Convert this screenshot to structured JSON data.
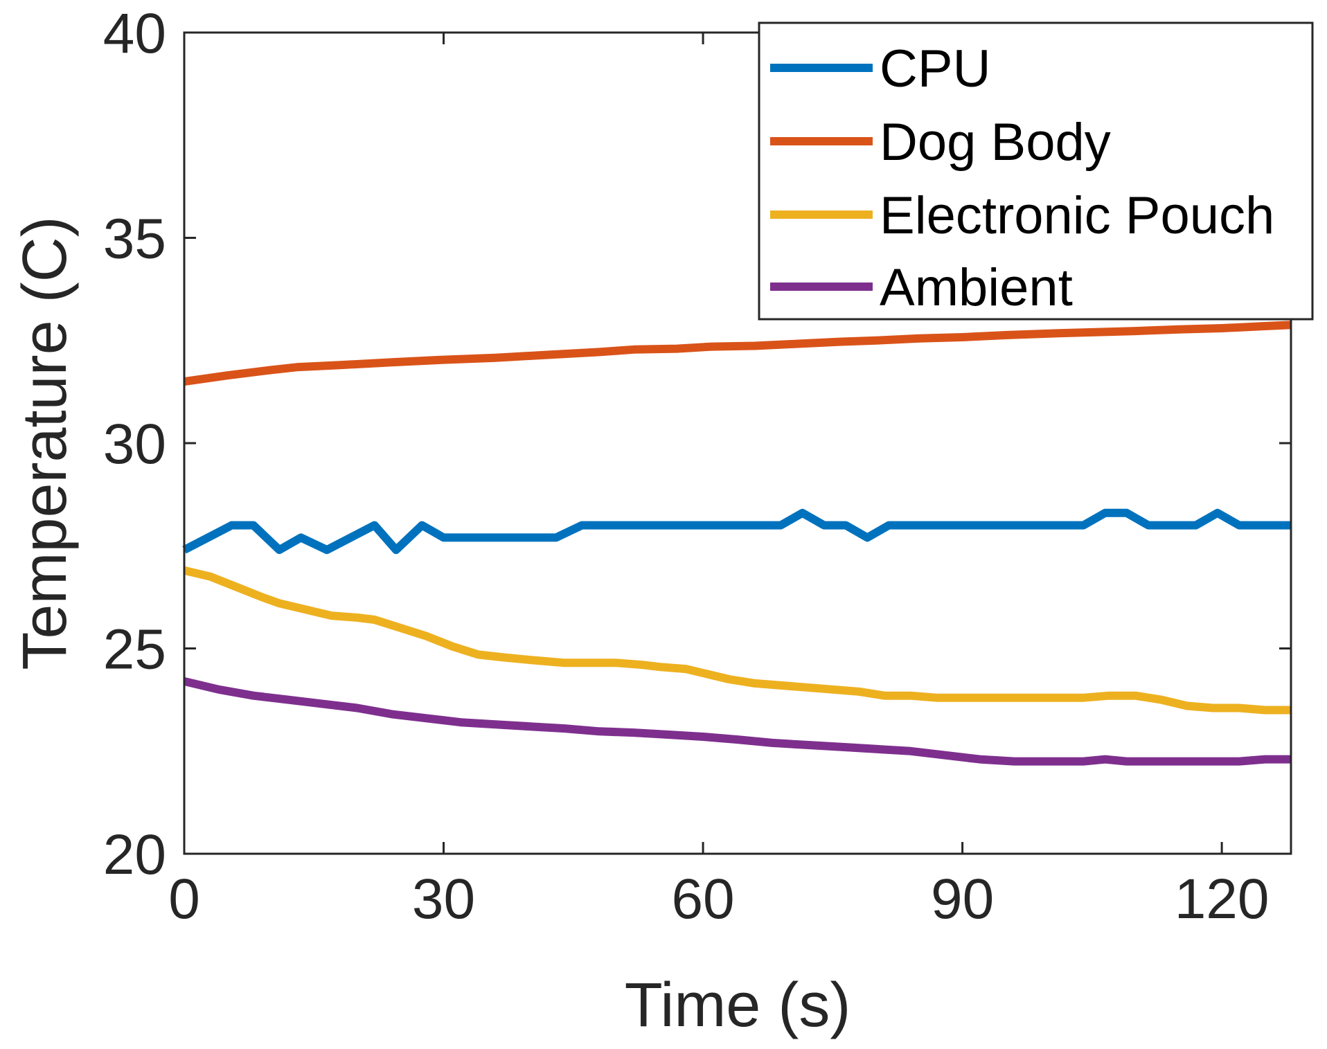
{
  "chart_data": {
    "type": "line",
    "title": "",
    "xlabel": "Time (s)",
    "ylabel": "Temperature (C)",
    "xlim": [
      0,
      128
    ],
    "ylim": [
      20,
      40
    ],
    "xticks": [
      0,
      30,
      60,
      90,
      120
    ],
    "yticks": [
      20,
      25,
      30,
      35,
      40
    ],
    "grid": false,
    "legend_position": "top-right",
    "series": [
      {
        "name": "CPU",
        "color": "#0072BD",
        "x": [
          0,
          5.5,
          8,
          11,
          13.5,
          16.5,
          22,
          24.5,
          27.5,
          30,
          43,
          46,
          69,
          71.5,
          74,
          76.5,
          79,
          81.5,
          104,
          106.5,
          109,
          111.5,
          117,
          119.5,
          122,
          128
        ],
        "y": [
          27.4,
          28.0,
          28.0,
          27.4,
          27.7,
          27.4,
          28.0,
          27.4,
          28.0,
          27.7,
          27.7,
          28.0,
          28.0,
          28.3,
          28.0,
          28.0,
          27.7,
          28.0,
          28.0,
          28.3,
          28.3,
          28.0,
          28.0,
          28.3,
          28.0,
          28.0
        ]
      },
      {
        "name": "Dog Body",
        "color": "#D95319",
        "x": [
          0,
          5,
          10,
          13,
          18,
          24,
          30,
          36,
          42,
          48,
          52,
          57,
          61,
          66,
          71,
          76,
          80,
          85,
          90,
          95,
          100,
          105,
          110,
          115,
          120,
          125,
          128
        ],
        "y": [
          31.5,
          31.65,
          31.78,
          31.85,
          31.9,
          31.97,
          32.03,
          32.08,
          32.15,
          32.22,
          32.28,
          32.3,
          32.35,
          32.37,
          32.42,
          32.47,
          32.5,
          32.55,
          32.58,
          32.63,
          32.67,
          32.7,
          32.73,
          32.77,
          32.8,
          32.85,
          32.88
        ]
      },
      {
        "name": "Electronic Pouch",
        "color": "#EDB120",
        "x": [
          0,
          3,
          6,
          9,
          11,
          14,
          17,
          20,
          22,
          25,
          28,
          31,
          34,
          37,
          40,
          44,
          47,
          50,
          53,
          55,
          58,
          61,
          63,
          66,
          69,
          72,
          75,
          78,
          81,
          84,
          87,
          90,
          93,
          96,
          99,
          102,
          104,
          107,
          110,
          113,
          116,
          119,
          122,
          125,
          128
        ],
        "y": [
          26.9,
          26.75,
          26.5,
          26.25,
          26.1,
          25.95,
          25.8,
          25.75,
          25.7,
          25.5,
          25.3,
          25.05,
          24.85,
          24.78,
          24.72,
          24.65,
          24.65,
          24.65,
          24.6,
          24.55,
          24.5,
          24.35,
          24.25,
          24.15,
          24.1,
          24.05,
          24.0,
          23.95,
          23.85,
          23.85,
          23.8,
          23.8,
          23.8,
          23.8,
          23.8,
          23.8,
          23.8,
          23.85,
          23.85,
          23.75,
          23.6,
          23.55,
          23.55,
          23.5,
          23.5
        ]
      },
      {
        "name": "Ambient",
        "color": "#7E2F8E",
        "x": [
          0,
          4,
          8,
          12,
          16,
          20,
          24,
          28,
          32,
          36,
          40,
          44,
          48,
          52,
          56,
          60,
          64,
          68,
          72,
          76,
          80,
          84,
          88,
          92,
          96,
          100,
          104,
          106.5,
          109,
          114,
          118,
          122,
          125,
          128
        ],
        "y": [
          24.2,
          24.0,
          23.85,
          23.75,
          23.65,
          23.55,
          23.4,
          23.3,
          23.2,
          23.15,
          23.1,
          23.05,
          22.98,
          22.95,
          22.9,
          22.85,
          22.78,
          22.7,
          22.65,
          22.6,
          22.55,
          22.5,
          22.4,
          22.3,
          22.25,
          22.25,
          22.25,
          22.3,
          22.25,
          22.25,
          22.25,
          22.25,
          22.3,
          22.3
        ]
      }
    ]
  }
}
